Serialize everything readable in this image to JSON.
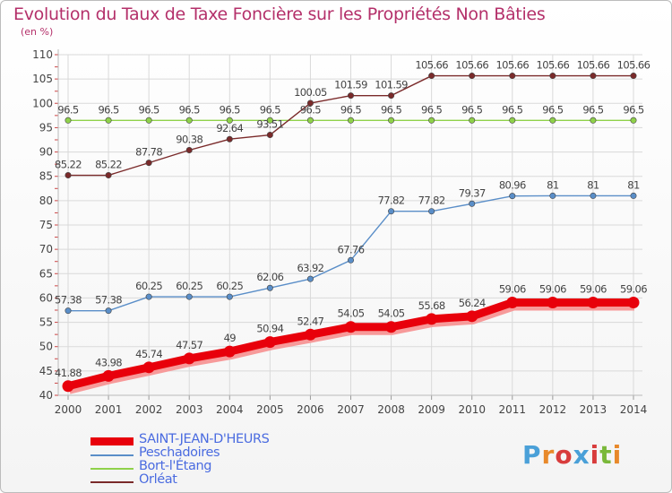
{
  "title": "Evolution du Taux de Taxe Foncière sur les Propriétés Non Bâties",
  "subtitle": "(en %)",
  "chart_data": {
    "type": "line",
    "x": [
      "2000",
      "2001",
      "2002",
      "2003",
      "2004",
      "2005",
      "2006",
      "2007",
      "2008",
      "2009",
      "2010",
      "2011",
      "2012",
      "2013",
      "2014"
    ],
    "ylim": [
      40,
      110
    ],
    "yticks": [
      40,
      45,
      50,
      55,
      60,
      65,
      70,
      75,
      80,
      85,
      90,
      95,
      100,
      105,
      110
    ],
    "grid": true,
    "series": [
      {
        "name": "SAINT-JEAN-D'HEURS",
        "color": "#e8000b",
        "values": [
          41.88,
          43.98,
          45.74,
          47.57,
          49,
          50.94,
          52.47,
          54.05,
          54.05,
          55.68,
          56.24,
          59.06,
          59.06,
          59.06,
          59.06
        ],
        "labels": [
          "41.88",
          "43.98",
          "45.74",
          "47.57",
          "49",
          "50.94",
          "52.47",
          "54.05",
          "54.05",
          "55.68",
          "56.24",
          "59.06",
          "59.06",
          "59.06",
          "59.06"
        ]
      },
      {
        "name": "Peschadoires",
        "color": "#5a8ec8",
        "values": [
          57.38,
          57.38,
          60.25,
          60.25,
          60.25,
          62.06,
          63.92,
          67.76,
          77.82,
          77.82,
          79.37,
          80.96,
          81,
          81,
          81
        ],
        "labels": [
          "57.38",
          "57.38",
          "60.25",
          "60.25",
          "60.25",
          "62.06",
          "63.92",
          "67.76",
          "77.82",
          "77.82",
          "79.37",
          "80.96",
          "81",
          "81",
          "81"
        ]
      },
      {
        "name": "Bort-l'Étang",
        "color": "#8fd14a",
        "values": [
          96.5,
          96.5,
          96.5,
          96.5,
          96.5,
          96.5,
          96.5,
          96.5,
          96.5,
          96.5,
          96.5,
          96.5,
          96.5,
          96.5,
          96.5
        ],
        "labels": [
          "96.5",
          "96.5",
          "96.5",
          "96.5",
          "96.5",
          "96.5",
          "96.5",
          "96.5",
          "96.5",
          "96.5",
          "96.5",
          "96.5",
          "96.5",
          "96.5",
          "96.5"
        ]
      },
      {
        "name": "Orléat",
        "color": "#7a2a2a",
        "values": [
          85.22,
          85.22,
          87.78,
          90.38,
          92.64,
          93.51,
          100.05,
          101.59,
          101.59,
          105.66,
          105.66,
          105.66,
          105.66,
          105.66,
          105.66
        ],
        "labels": [
          "85.22",
          "85.22",
          "87.78",
          "90.38",
          "92.64",
          "93.51",
          "100.05",
          "101.59",
          "101.59",
          "105.66",
          "105.66",
          "105.66",
          "105.66",
          "105.66",
          "105.66"
        ]
      }
    ]
  },
  "logo": {
    "text": "Proxiti",
    "colors": [
      "#4aa0d8",
      "#e8892a",
      "#d83c3c",
      "#4aa0d8",
      "#d83c3c",
      "#7ab83a",
      "#e8892a"
    ]
  }
}
